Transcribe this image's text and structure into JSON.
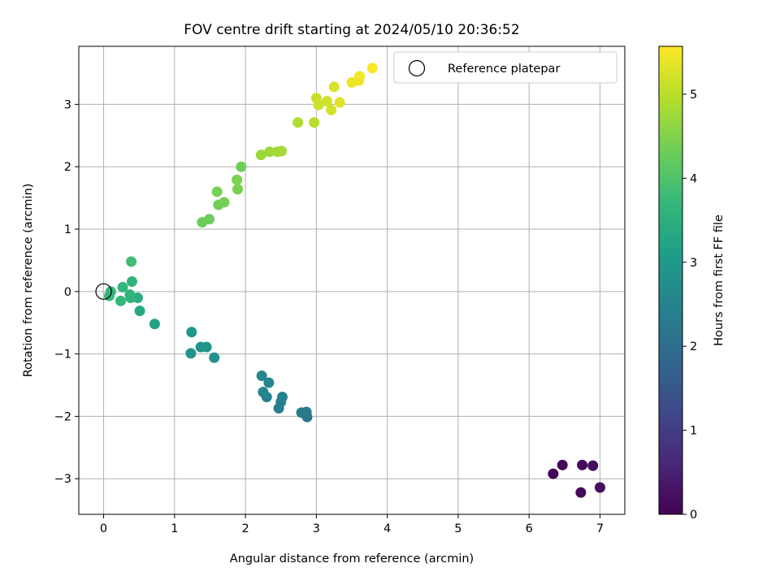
{
  "chart_data": {
    "type": "scatter",
    "title": "FOV centre drift starting at 2024/05/10 20:36:52",
    "xlabel": "Angular distance from reference (arcmin)",
    "ylabel": "Rotation from reference (arcmin)",
    "xlim": [
      -0.35,
      7.35
    ],
    "ylim": [
      -3.57,
      3.93
    ],
    "xticks": [
      0,
      1,
      2,
      3,
      4,
      5,
      6,
      7
    ],
    "yticks": [
      -3,
      -2,
      -1,
      0,
      1,
      2,
      3
    ],
    "xtick_labels": [
      "0",
      "1",
      "2",
      "3",
      "4",
      "5",
      "6",
      "7"
    ],
    "ytick_labels": [
      "−3",
      "−2",
      "−1",
      "0",
      "1",
      "2",
      "3"
    ],
    "grid": true,
    "colormap": "viridis",
    "colormap_stops": [
      "#440154",
      "#482878",
      "#3e4a89",
      "#31688e",
      "#26828e",
      "#1f9e89",
      "#35b779",
      "#6ece58",
      "#b5de2b",
      "#fde725"
    ],
    "colorbar": {
      "label": "Hours from first FF file",
      "range": [
        0,
        5.57
      ],
      "ticks": [
        0,
        1,
        2,
        3,
        4,
        5
      ],
      "tick_labels": [
        "0",
        "1",
        "2",
        "3",
        "4",
        "5"
      ]
    },
    "legend": {
      "position": "top-right",
      "entries": [
        "Reference platepar"
      ]
    },
    "reference_point": {
      "x": 0,
      "y": 0,
      "label": "Reference platepar"
    },
    "points": [
      {
        "x": 6.34,
        "y": -2.92,
        "t": 0.05
      },
      {
        "x": 6.47,
        "y": -2.78,
        "t": 0.1
      },
      {
        "x": 6.73,
        "y": -3.22,
        "t": 0.12
      },
      {
        "x": 6.75,
        "y": -2.78,
        "t": 0.15
      },
      {
        "x": 6.9,
        "y": -2.79,
        "t": 0.18
      },
      {
        "x": 7.0,
        "y": -3.14,
        "t": 0.2
      },
      {
        "x": 2.87,
        "y": -2.01,
        "t": 2.2
      },
      {
        "x": 2.86,
        "y": -1.93,
        "t": 2.25
      },
      {
        "x": 2.79,
        "y": -1.94,
        "t": 2.3
      },
      {
        "x": 2.47,
        "y": -1.87,
        "t": 2.35
      },
      {
        "x": 2.5,
        "y": -1.77,
        "t": 2.4
      },
      {
        "x": 2.52,
        "y": -1.69,
        "t": 2.45
      },
      {
        "x": 2.3,
        "y": -1.69,
        "t": 2.5
      },
      {
        "x": 2.25,
        "y": -1.61,
        "t": 2.55
      },
      {
        "x": 2.33,
        "y": -1.46,
        "t": 2.58
      },
      {
        "x": 2.23,
        "y": -1.35,
        "t": 2.6
      },
      {
        "x": 1.56,
        "y": -1.06,
        "t": 2.8
      },
      {
        "x": 1.45,
        "y": -0.89,
        "t": 2.85
      },
      {
        "x": 1.37,
        "y": -0.89,
        "t": 2.88
      },
      {
        "x": 1.23,
        "y": -0.99,
        "t": 2.9
      },
      {
        "x": 1.24,
        "y": -0.65,
        "t": 2.95
      },
      {
        "x": 0.72,
        "y": -0.52,
        "t": 3.2
      },
      {
        "x": 0.51,
        "y": -0.31,
        "t": 3.35
      },
      {
        "x": 0.48,
        "y": -0.1,
        "t": 3.5
      },
      {
        "x": 0.38,
        "y": -0.1,
        "t": 3.55
      },
      {
        "x": 0.4,
        "y": 0.16,
        "t": 3.6
      },
      {
        "x": 0.37,
        "y": -0.05,
        "t": 3.62
      },
      {
        "x": 0.27,
        "y": 0.07,
        "t": 3.65
      },
      {
        "x": 0.24,
        "y": -0.15,
        "t": 3.68
      },
      {
        "x": 0.1,
        "y": 0.0,
        "t": 3.7
      },
      {
        "x": 0.08,
        "y": -0.07,
        "t": 3.72
      },
      {
        "x": 0.39,
        "y": 0.48,
        "t": 3.85
      },
      {
        "x": 1.39,
        "y": 1.11,
        "t": 4.3
      },
      {
        "x": 1.49,
        "y": 1.16,
        "t": 4.32
      },
      {
        "x": 1.62,
        "y": 1.39,
        "t": 4.35
      },
      {
        "x": 1.7,
        "y": 1.43,
        "t": 4.38
      },
      {
        "x": 1.6,
        "y": 1.6,
        "t": 4.4
      },
      {
        "x": 1.89,
        "y": 1.64,
        "t": 4.42
      },
      {
        "x": 1.88,
        "y": 1.79,
        "t": 4.45
      },
      {
        "x": 1.94,
        "y": 2.0,
        "t": 4.3
      },
      {
        "x": 2.22,
        "y": 2.19,
        "t": 4.72
      },
      {
        "x": 2.34,
        "y": 2.24,
        "t": 4.75
      },
      {
        "x": 2.45,
        "y": 2.24,
        "t": 4.78
      },
      {
        "x": 2.51,
        "y": 2.25,
        "t": 4.8
      },
      {
        "x": 2.74,
        "y": 2.71,
        "t": 4.9
      },
      {
        "x": 2.97,
        "y": 2.71,
        "t": 4.95
      },
      {
        "x": 3.0,
        "y": 3.1,
        "t": 5.1
      },
      {
        "x": 3.03,
        "y": 2.99,
        "t": 5.15
      },
      {
        "x": 3.15,
        "y": 3.05,
        "t": 5.18
      },
      {
        "x": 3.21,
        "y": 2.91,
        "t": 5.2
      },
      {
        "x": 3.25,
        "y": 3.28,
        "t": 5.25
      },
      {
        "x": 3.33,
        "y": 3.03,
        "t": 5.3
      },
      {
        "x": 3.5,
        "y": 3.35,
        "t": 5.4
      },
      {
        "x": 3.6,
        "y": 3.38,
        "t": 5.45
      },
      {
        "x": 3.61,
        "y": 3.45,
        "t": 5.48
      },
      {
        "x": 3.79,
        "y": 3.58,
        "t": 5.55
      }
    ]
  }
}
